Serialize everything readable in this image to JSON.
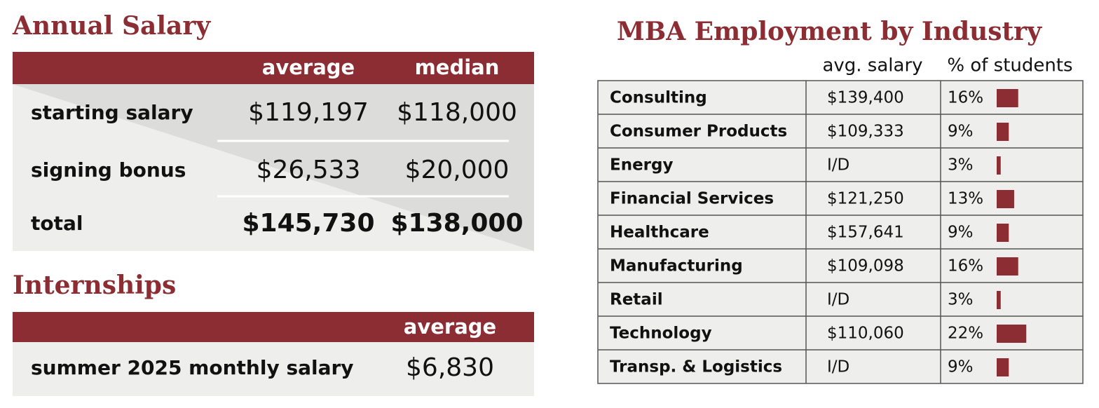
{
  "annual_salary": {
    "title": "Annual Salary",
    "columns": [
      "average",
      "median"
    ],
    "rows": [
      {
        "label": "starting salary",
        "values": [
          "$119,197",
          "$118,000"
        ]
      },
      {
        "label": "signing bonus",
        "values": [
          "$26,533",
          "$20,000"
        ]
      },
      {
        "label": "total",
        "values": [
          "$145,730",
          "$138,000"
        ]
      }
    ]
  },
  "internships": {
    "title": "Internships",
    "columns": [
      "average"
    ],
    "rows": [
      {
        "label": "summer 2025 monthly salary",
        "values": [
          "$6,830"
        ]
      }
    ]
  },
  "industry": {
    "title": "MBA Employment by Industry",
    "columns": [
      "avg. salary",
      "% of students"
    ],
    "rows": [
      {
        "name": "Consulting",
        "salary": "$139,400",
        "percent": 16,
        "percent_label": "16%"
      },
      {
        "name": "Consumer Products",
        "salary": "$109,333",
        "percent": 9,
        "percent_label": "9%"
      },
      {
        "name": "Energy",
        "salary": "I/D",
        "percent": 3,
        "percent_label": "3%"
      },
      {
        "name": "Financial Services",
        "salary": "$121,250",
        "percent": 13,
        "percent_label": "13%"
      },
      {
        "name": "Healthcare",
        "salary": "$157,641",
        "percent": 9,
        "percent_label": "9%"
      },
      {
        "name": "Manufacturing",
        "salary": "$109,098",
        "percent": 16,
        "percent_label": "16%"
      },
      {
        "name": "Retail",
        "salary": "I/D",
        "percent": 3,
        "percent_label": "3%"
      },
      {
        "name": "Technology",
        "salary": "$110,060",
        "percent": 22,
        "percent_label": "22%"
      },
      {
        "name": "Transp. & Logistics",
        "salary": "I/D",
        "percent": 9,
        "percent_label": "9%"
      }
    ]
  }
}
